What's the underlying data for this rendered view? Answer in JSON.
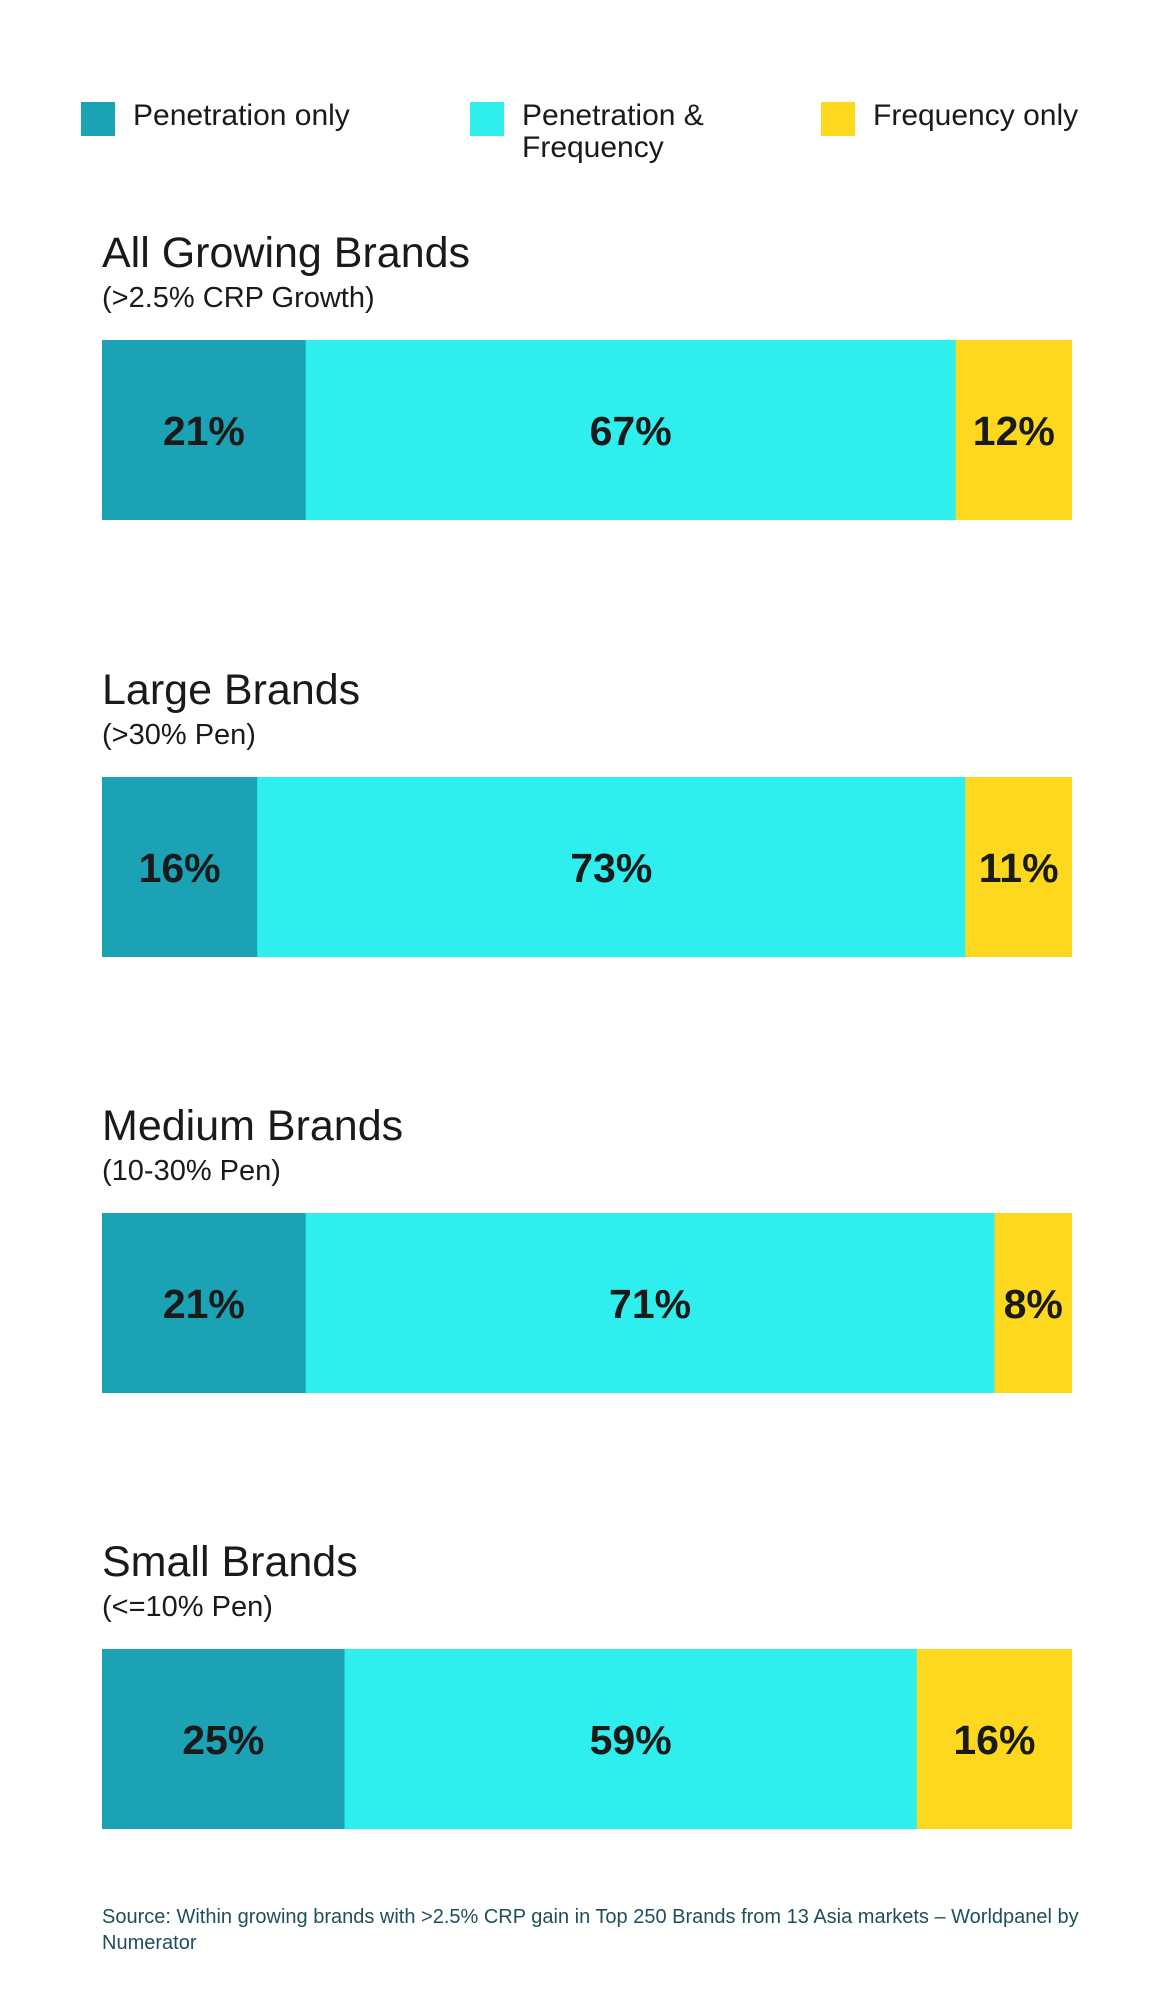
{
  "legend": [
    {
      "label": "Penetration only",
      "color": "#1ba3b5"
    },
    {
      "label": "Penetration & Frequency",
      "color": "#2eeeee"
    },
    {
      "label": "Frequency only",
      "color": "#fdd81f"
    }
  ],
  "chart_data": {
    "type": "bar",
    "orientation": "horizontal",
    "stacked": true,
    "legend_position": "top",
    "series": [
      {
        "name": "Penetration only",
        "color": "#1ba3b5"
      },
      {
        "name": "Penetration & Frequency",
        "color": "#2eeeee"
      },
      {
        "name": "Frequency only",
        "color": "#fdd81f"
      }
    ],
    "panels": [
      {
        "title": "All Growing Brands",
        "subtitle": "(>2.5% CRP Growth)",
        "values": [
          21,
          67,
          12
        ]
      },
      {
        "title": "Large Brands",
        "subtitle": "(>30% Pen)",
        "values": [
          16,
          73,
          11
        ]
      },
      {
        "title": "Medium Brands",
        "subtitle": "(10-30% Pen)",
        "values": [
          21,
          71,
          8
        ]
      },
      {
        "title": "Small Brands",
        "subtitle": "(<=10% Pen)",
        "values": [
          25,
          59,
          16
        ]
      }
    ]
  },
  "source": "Source: Within growing brands with >2.5% CRP gain in Top 250 Brands from 13 Asia markets – Worldpanel by Numerator"
}
